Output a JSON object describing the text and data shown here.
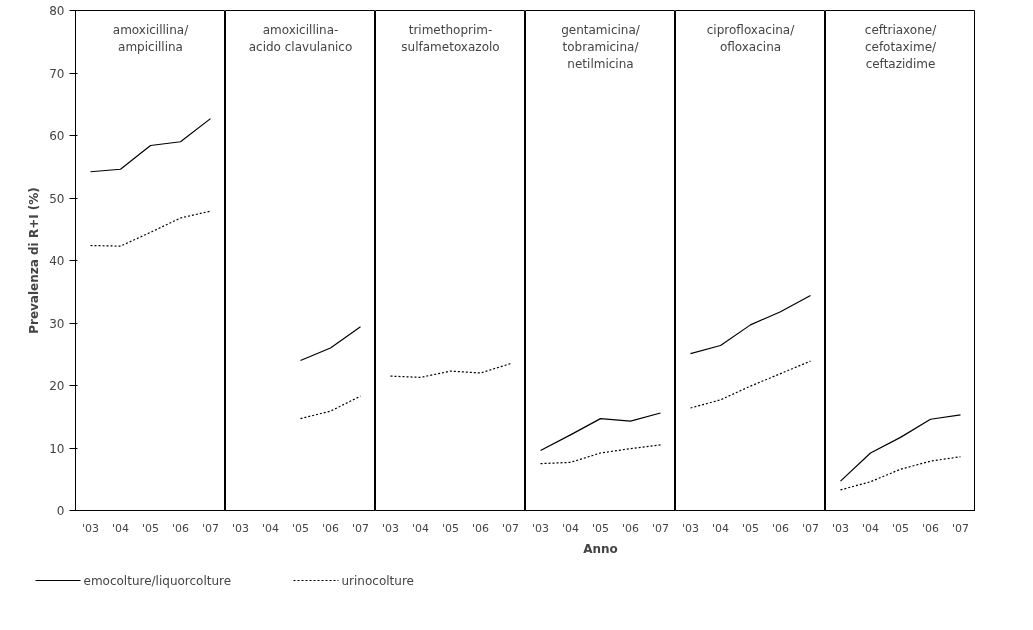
{
  "chart_data": [
    {
      "type": "line",
      "title": "amoxicillina/\nampicillina",
      "ylabel": "Prevalenza di R+I (%)",
      "legend": "bottom",
      "categories": [
        "'03",
        "'04",
        "'05",
        "'06",
        "'07"
      ],
      "ylim": [
        0,
        80
      ],
      "yticks": [
        0,
        10,
        20,
        30,
        40,
        50,
        60,
        70,
        80
      ],
      "series": [
        {
          "name": "emocolture/liquorcolture",
          "color": "#000000",
          "line_style": "solid",
          "values": [
            54.2,
            54.6,
            58.4,
            59.0,
            62.7
          ]
        },
        {
          "name": "urinocolture",
          "color": "#000000",
          "line_style": "dotted",
          "values": [
            42.4,
            42.3,
            44.5,
            46.8,
            47.9
          ]
        }
      ]
    },
    {
      "type": "line",
      "title": "amoxicillina-\nacido clavulanico",
      "tick_labels": "x",
      "categories": [
        "'03",
        "'04",
        "'05",
        "'06",
        "'07"
      ],
      "ylim": [
        0,
        80
      ],
      "series": [
        {
          "color": "#000000",
          "line_style": "solid",
          "values": [
            null,
            null,
            24.0,
            26.0,
            29.4
          ]
        },
        {
          "color": "#000000",
          "line_style": "dotted",
          "values": [
            null,
            null,
            14.7,
            15.9,
            18.3
          ]
        }
      ]
    },
    {
      "type": "line",
      "title": "trimethoprim-\nsulfametoxazolo",
      "tick_labels": "x",
      "categories": [
        "'03",
        "'04",
        "'05",
        "'06",
        "'07"
      ],
      "ylim": [
        0,
        80
      ],
      "series": [
        {
          "color": "#000000",
          "line_style": "dotted",
          "values": [
            21.5,
            21.3,
            22.3,
            22.0,
            23.5
          ]
        }
      ]
    },
    {
      "type": "line",
      "title": "gentamicina/\ntobramicina/\nnetilmicina",
      "xlabel": "Anno",
      "tick_labels": "x",
      "categories": [
        "'03",
        "'04",
        "'05",
        "'06",
        "'07"
      ],
      "ylim": [
        0,
        80
      ],
      "series": [
        {
          "color": "#000000",
          "line_style": "solid",
          "values": [
            9.6,
            12.1,
            14.7,
            14.3,
            15.6
          ]
        },
        {
          "color": "#000000",
          "line_style": "dotted",
          "values": [
            7.5,
            7.7,
            9.2,
            9.9,
            10.5
          ]
        }
      ]
    },
    {
      "type": "line",
      "title": "ciprofloxacina/\nofloxacina",
      "tick_labels": "x",
      "categories": [
        "'03",
        "'04",
        "'05",
        "'06",
        "'07"
      ],
      "ylim": [
        0,
        80
      ],
      "series": [
        {
          "color": "#000000",
          "line_style": "solid",
          "values": [
            25.1,
            26.4,
            29.7,
            31.8,
            34.4
          ]
        },
        {
          "color": "#000000",
          "line_style": "dotted",
          "values": [
            16.4,
            17.7,
            19.9,
            21.9,
            23.9
          ]
        }
      ]
    },
    {
      "type": "line",
      "title": "ceftriaxone/\ncefotaxime/\nceftazidime",
      "tick_labels": "x",
      "categories": [
        "'03",
        "'04",
        "'05",
        "'06",
        "'07"
      ],
      "ylim": [
        0,
        80
      ],
      "series": [
        {
          "color": "#000000",
          "line_style": "solid",
          "values": [
            4.7,
            9.2,
            11.7,
            14.6,
            15.3
          ]
        },
        {
          "color": "#000000",
          "line_style": "dotted",
          "values": [
            3.3,
            4.6,
            6.6,
            7.9,
            8.6
          ]
        }
      ]
    }
  ]
}
